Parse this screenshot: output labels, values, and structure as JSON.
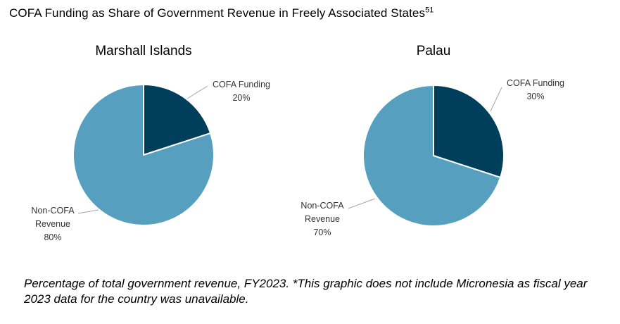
{
  "title": {
    "text": "COFA Funding as Share of Government Revenue in Freely Associated States",
    "footnote": "51"
  },
  "caption": "Percentage of total government revenue, FY2023. *This graphic does not include Micronesia as fiscal year 2023 data for the country was unavailable.",
  "colors": {
    "cofa": "#003f5c",
    "non_cofa": "#569fbf"
  },
  "chart_data": [
    {
      "type": "pie",
      "title": "Marshall Islands",
      "slices": [
        {
          "label_lines": [
            "COFA Funding",
            "20%"
          ],
          "value": 20
        },
        {
          "label_lines": [
            "Non-COFA",
            "Revenue",
            "80%"
          ],
          "value": 80
        }
      ]
    },
    {
      "type": "pie",
      "title": "Palau",
      "slices": [
        {
          "label_lines": [
            "COFA Funding",
            "30%"
          ],
          "value": 30
        },
        {
          "label_lines": [
            "Non-COFA",
            "Revenue",
            "70%"
          ],
          "value": 70
        }
      ]
    }
  ]
}
